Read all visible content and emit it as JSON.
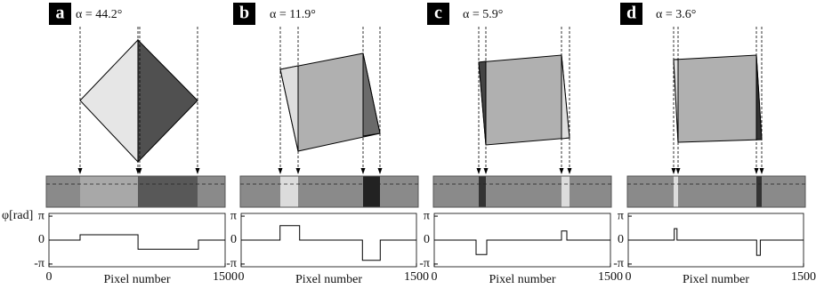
{
  "chart_data": [
    {
      "type": "line",
      "label": "a",
      "annotation": "α = 44.2°",
      "ylabel": "φ[rad]",
      "xlabel": "Pixel number",
      "x": [
        0,
        265,
        265,
        758,
        758,
        1273,
        1273,
        1500
      ],
      "values": [
        0,
        0,
        0.7,
        0.7,
        -1.2,
        -1.2,
        0,
        0
      ],
      "xlim": [
        0,
        1500
      ],
      "xticks": [
        0,
        1500
      ],
      "ylim": [
        -3.5,
        3.5
      ],
      "yticks": [
        {
          "value": 3.1416,
          "label": "π"
        },
        0,
        {
          "value": -3.1416,
          "label": "-π"
        }
      ]
    },
    {
      "type": "line",
      "label": "b",
      "annotation": "α = 11.9°",
      "xlabel": "Pixel number",
      "x": [
        0,
        333,
        333,
        500,
        500,
        1038,
        1038,
        1190,
        1190,
        1500
      ],
      "values": [
        0,
        0,
        1.9,
        1.9,
        0,
        0,
        -2.65,
        -2.65,
        0,
        0
      ],
      "xlim": [
        0,
        1500
      ],
      "xticks": [
        0,
        1500
      ],
      "ylim": [
        -3.5,
        3.5
      ],
      "yticks": [
        {
          "value": 3.1416,
          "label": "π"
        },
        0,
        {
          "value": -3.1416,
          "label": "-π"
        }
      ]
    },
    {
      "type": "line",
      "label": "c",
      "annotation": "α = 5.9°",
      "xlabel": "Pixel number",
      "x": [
        0,
        356,
        356,
        447,
        447,
        1083,
        1083,
        1129,
        1129,
        1500
      ],
      "values": [
        0,
        0,
        -1.9,
        -1.9,
        0,
        0,
        1.2,
        1.2,
        0,
        0
      ],
      "xlim": [
        0,
        1500
      ],
      "xticks": [
        0,
        1500
      ],
      "ylim": [
        -3.5,
        3.5
      ],
      "yticks": [
        {
          "value": 3.1416,
          "label": "π"
        },
        0,
        {
          "value": -3.1416,
          "label": "-π"
        }
      ]
    },
    {
      "type": "line",
      "label": "d",
      "annotation": "α = 3.6°",
      "xlabel": "Pixel number",
      "x": [
        0,
        394,
        394,
        417,
        417,
        1099,
        1099,
        1130,
        1130,
        1500
      ],
      "values": [
        0,
        0,
        1.5,
        1.5,
        0,
        0,
        -2,
        -2,
        0,
        0
      ],
      "xlim": [
        0,
        1500
      ],
      "xticks": [
        0,
        1500
      ],
      "ylim": [
        -3.5,
        3.5
      ],
      "yticks": [
        {
          "value": 3.1416,
          "label": "π"
        },
        0,
        {
          "value": -3.1416,
          "label": "-π"
        }
      ]
    }
  ]
}
